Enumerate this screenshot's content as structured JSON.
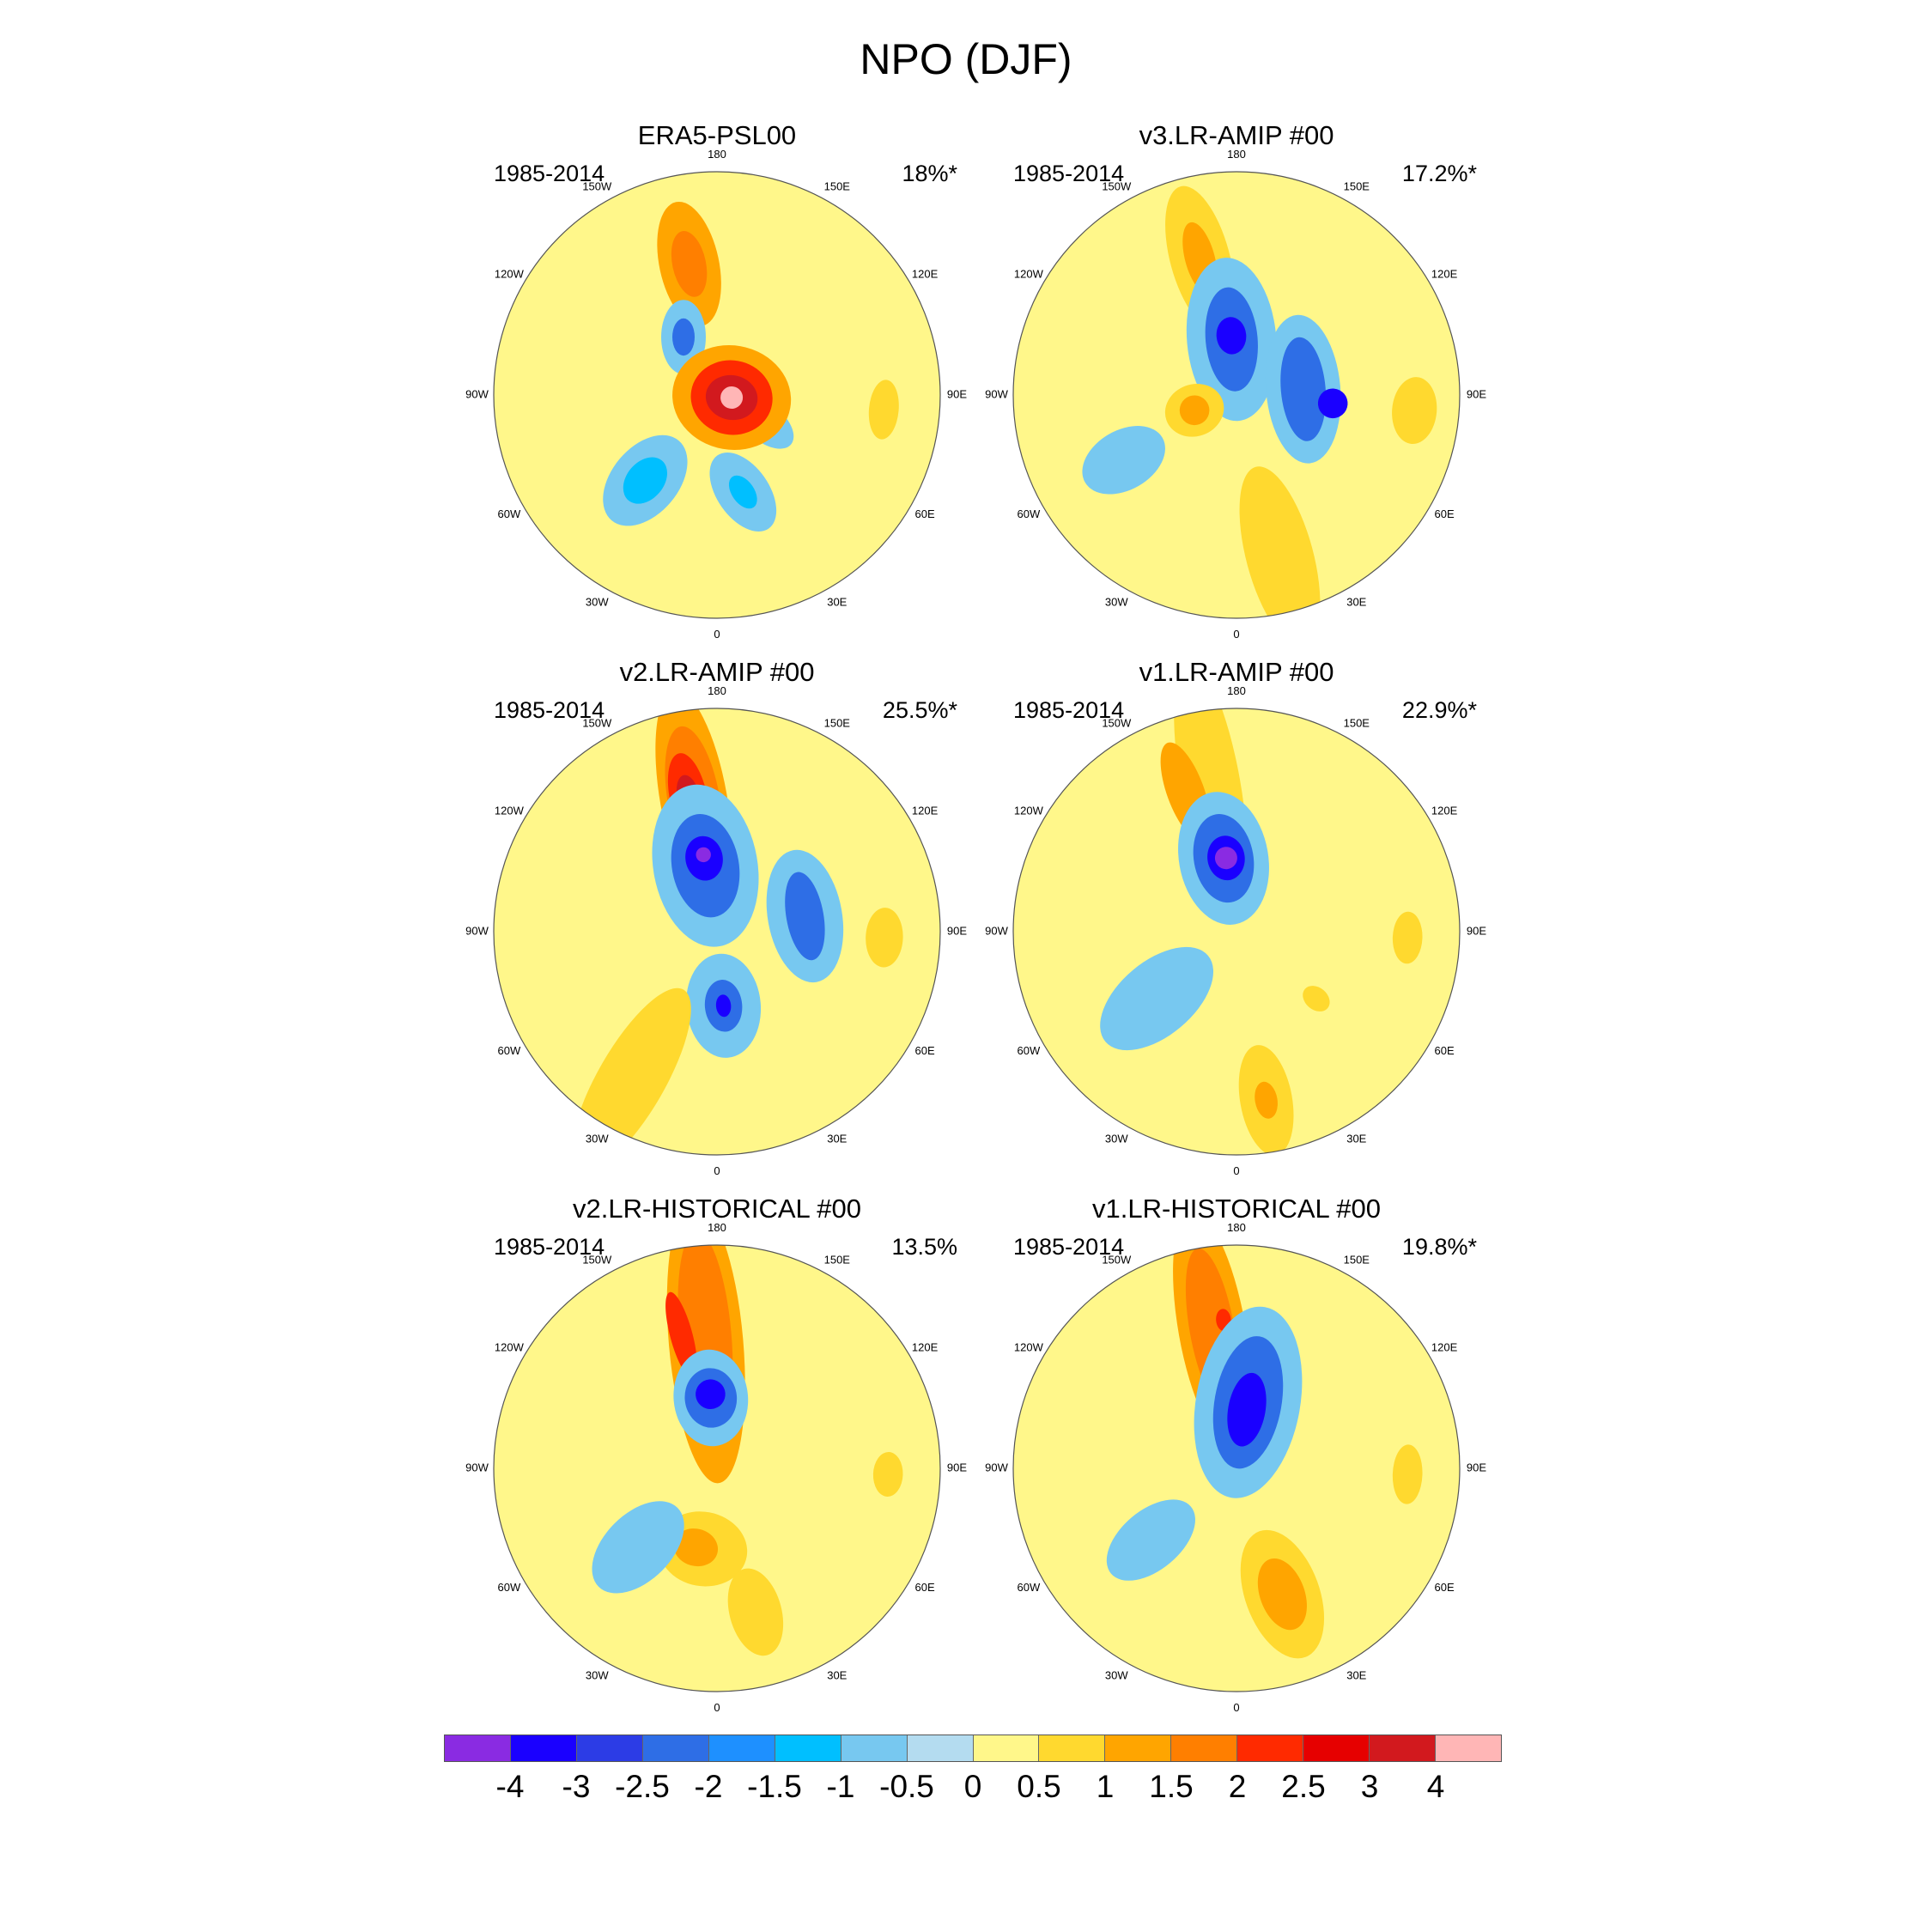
{
  "figure": {
    "title": "NPO (DJF)"
  },
  "longitude_labels": [
    "180",
    "150E",
    "120E",
    "90E",
    "60E",
    "30E",
    "0",
    "30W",
    "60W",
    "90W",
    "120W",
    "150W"
  ],
  "panels": [
    {
      "title": "ERA5-PSL00",
      "period": "1985-2014",
      "variance": "18%*",
      "features": [
        {
          "fill": "#FFA500",
          "lon": -168,
          "colat": 36,
          "rx": 17,
          "ry": 8,
          "rot": 0
        },
        {
          "fill": "#FF7F00",
          "lon": -168,
          "colat": 36,
          "rx": 9,
          "ry": 4.5,
          "rot": 0
        },
        {
          "fill": "#77C8F0",
          "lon": -150,
          "colat": 18,
          "rx": 10,
          "ry": 6,
          "rot": 30
        },
        {
          "fill": "#2E6EE6",
          "lon": -150,
          "colat": 18,
          "rx": 5,
          "ry": 3,
          "rot": 30
        },
        {
          "fill": "#77C8F0",
          "lon": 60,
          "colat": 15,
          "rx": 9,
          "ry": 5,
          "rot": 10
        },
        {
          "fill": "#FFA500",
          "lon": 80,
          "colat": 4,
          "rx": 16,
          "ry": 14,
          "rot": 0
        },
        {
          "fill": "#FF2A00",
          "lon": 80,
          "colat": 4,
          "rx": 11,
          "ry": 10,
          "rot": 0
        },
        {
          "fill": "#D2191E",
          "lon": 80,
          "colat": 4,
          "rx": 7,
          "ry": 6,
          "rot": 0
        },
        {
          "fill": "#FFB6B6",
          "lon": 80,
          "colat": 4,
          "rx": 3,
          "ry": 3,
          "rot": 0
        },
        {
          "fill": "#77C8F0",
          "lon": -40,
          "colat": 30,
          "rx": 14,
          "ry": 9,
          "rot": 0
        },
        {
          "fill": "#00BFFF",
          "lon": -40,
          "colat": 30,
          "rx": 7,
          "ry": 5,
          "rot": 0
        },
        {
          "fill": "#77C8F0",
          "lon": 15,
          "colat": 27,
          "rx": 12,
          "ry": 7,
          "rot": -20
        },
        {
          "fill": "#00BFFF",
          "lon": 15,
          "colat": 27,
          "rx": 5,
          "ry": 3,
          "rot": -20
        },
        {
          "fill": "#FFD92F",
          "lon": 85,
          "colat": 45,
          "rx": 4,
          "ry": 8,
          "rot": 0
        }
      ]
    },
    {
      "title": "v3.LR-AMIP  #00",
      "period": "1985-2014",
      "variance": "17.2%*",
      "features": [
        {
          "fill": "#FFD92F",
          "lon": -165,
          "colat": 38,
          "rx": 20,
          "ry": 8,
          "rot": 0
        },
        {
          "fill": "#FFA500",
          "lon": -165,
          "colat": 38,
          "rx": 10,
          "ry": 4,
          "rot": 0
        },
        {
          "fill": "#77C8F0",
          "lon": -175,
          "colat": 15,
          "rx": 22,
          "ry": 12,
          "rot": 0
        },
        {
          "fill": "#2E6EE6",
          "lon": -175,
          "colat": 15,
          "rx": 14,
          "ry": 7,
          "rot": 0
        },
        {
          "fill": "#1A00FF",
          "lon": -175,
          "colat": 16,
          "rx": 5,
          "ry": 4,
          "rot": 0
        },
        {
          "fill": "#77C8F0",
          "lon": 95,
          "colat": 18,
          "rx": 10,
          "ry": 20,
          "rot": 0
        },
        {
          "fill": "#2E6EE6",
          "lon": 95,
          "colat": 18,
          "rx": 6,
          "ry": 14,
          "rot": 0
        },
        {
          "fill": "#1A00FF",
          "lon": 85,
          "colat": 26,
          "rx": 4,
          "ry": 4,
          "rot": 0
        },
        {
          "fill": "#FFD92F",
          "lon": -70,
          "colat": 12,
          "rx": 8,
          "ry": 7,
          "rot": 0
        },
        {
          "fill": "#FFA500",
          "lon": -70,
          "colat": 12,
          "rx": 4,
          "ry": 4,
          "rot": 0
        },
        {
          "fill": "#FFD92F",
          "lon": 15,
          "colat": 45,
          "rx": 25,
          "ry": 9,
          "rot": 0
        },
        {
          "fill": "#FFD92F",
          "lon": 85,
          "colat": 48,
          "rx": 6,
          "ry": 9,
          "rot": 0
        },
        {
          "fill": "#77C8F0",
          "lon": -60,
          "colat": 35,
          "rx": 12,
          "ry": 8,
          "rot": 0
        }
      ]
    },
    {
      "title": "v2.LR-AMIP  #00",
      "period": "1985-2014",
      "variance": "25.5%*",
      "features": [
        {
          "fill": "#FFA500",
          "lon": -170,
          "colat": 36,
          "rx": 30,
          "ry": 9,
          "rot": 0
        },
        {
          "fill": "#FF7F00",
          "lon": -170,
          "colat": 36,
          "rx": 20,
          "ry": 7,
          "rot": 0
        },
        {
          "fill": "#FF2A00",
          "lon": -168,
          "colat": 37,
          "rx": 12,
          "ry": 5,
          "rot": 0
        },
        {
          "fill": "#D2191E",
          "lon": -168,
          "colat": 37,
          "rx": 6,
          "ry": 3,
          "rot": 0
        },
        {
          "fill": "#77C8F0",
          "lon": -170,
          "colat": 18,
          "rx": 22,
          "ry": 14,
          "rot": 0
        },
        {
          "fill": "#2E6EE6",
          "lon": -170,
          "colat": 18,
          "rx": 14,
          "ry": 9,
          "rot": 0
        },
        {
          "fill": "#1A00FF",
          "lon": -170,
          "colat": 20,
          "rx": 6,
          "ry": 5,
          "rot": 0
        },
        {
          "fill": "#8A2BE2",
          "lon": -170,
          "colat": 21,
          "rx": 2,
          "ry": 2,
          "rot": 0
        },
        {
          "fill": "#77C8F0",
          "lon": 100,
          "colat": 24,
          "rx": 10,
          "ry": 18,
          "rot": 0
        },
        {
          "fill": "#2E6EE6",
          "lon": 100,
          "colat": 24,
          "rx": 5,
          "ry": 12,
          "rot": 0
        },
        {
          "fill": "#77C8F0",
          "lon": 5,
          "colat": 20,
          "rx": 14,
          "ry": 10,
          "rot": 0
        },
        {
          "fill": "#2E6EE6",
          "lon": 5,
          "colat": 20,
          "rx": 7,
          "ry": 5,
          "rot": 0
        },
        {
          "fill": "#1A00FF",
          "lon": 5,
          "colat": 20,
          "rx": 3,
          "ry": 2,
          "rot": 0
        },
        {
          "fill": "#FFD92F",
          "lon": -30,
          "colat": 46,
          "rx": 28,
          "ry": 9,
          "rot": 0
        },
        {
          "fill": "#FFD92F",
          "lon": 88,
          "colat": 45,
          "rx": 5,
          "ry": 8,
          "rot": 0
        }
      ]
    },
    {
      "title": "v1.LR-AMIP  #00",
      "period": "1985-2014",
      "variance": "22.9%*",
      "features": [
        {
          "fill": "#FFD92F",
          "lon": -170,
          "colat": 40,
          "rx": 34,
          "ry": 8,
          "rot": 0
        },
        {
          "fill": "#FFA500",
          "lon": -160,
          "colat": 40,
          "rx": 14,
          "ry": 5,
          "rot": 0
        },
        {
          "fill": "#77C8F0",
          "lon": -170,
          "colat": 20,
          "rx": 18,
          "ry": 12,
          "rot": 0
        },
        {
          "fill": "#2E6EE6",
          "lon": -170,
          "colat": 20,
          "rx": 12,
          "ry": 8,
          "rot": 0
        },
        {
          "fill": "#1A00FF",
          "lon": -172,
          "colat": 20,
          "rx": 6,
          "ry": 5,
          "rot": 0
        },
        {
          "fill": "#8A2BE2",
          "lon": -172,
          "colat": 20,
          "rx": 3,
          "ry": 3,
          "rot": 0
        },
        {
          "fill": "#77C8F0",
          "lon": -50,
          "colat": 28,
          "rx": 18,
          "ry": 10,
          "rot": 0
        },
        {
          "fill": "#FFD92F",
          "lon": 10,
          "colat": 46,
          "rx": 15,
          "ry": 7,
          "rot": 0
        },
        {
          "fill": "#FFA500",
          "lon": 10,
          "colat": 46,
          "rx": 5,
          "ry": 3,
          "rot": 0
        },
        {
          "fill": "#FFD92F",
          "lon": 88,
          "colat": 46,
          "rx": 4,
          "ry": 7,
          "rot": 0
        },
        {
          "fill": "#FFD92F",
          "lon": 50,
          "colat": 28,
          "rx": 4,
          "ry": 3,
          "rot": 0
        }
      ]
    },
    {
      "title": "v2.LR-HISTORICAL  #00",
      "period": "1985-2014",
      "variance": "13.5%",
      "features": [
        {
          "fill": "#FFA500",
          "lon": -175,
          "colat": 34,
          "rx": 38,
          "ry": 10,
          "rot": 0
        },
        {
          "fill": "#FF7F00",
          "lon": -175,
          "colat": 36,
          "rx": 28,
          "ry": 7,
          "rot": 0
        },
        {
          "fill": "#FF2A00",
          "lon": -165,
          "colat": 37,
          "rx": 12,
          "ry": 3,
          "rot": 0
        },
        {
          "fill": "#77C8F0",
          "lon": -175,
          "colat": 19,
          "rx": 13,
          "ry": 10,
          "rot": 0
        },
        {
          "fill": "#2E6EE6",
          "lon": -175,
          "colat": 19,
          "rx": 8,
          "ry": 7,
          "rot": 0
        },
        {
          "fill": "#1A00FF",
          "lon": -175,
          "colat": 20,
          "rx": 4,
          "ry": 4,
          "rot": 0
        },
        {
          "fill": "#FFD92F",
          "lon": -10,
          "colat": 22,
          "rx": 10,
          "ry": 12,
          "rot": 0
        },
        {
          "fill": "#FFA500",
          "lon": -15,
          "colat": 22,
          "rx": 5,
          "ry": 6,
          "rot": 0
        },
        {
          "fill": "#77C8F0",
          "lon": -45,
          "colat": 30,
          "rx": 15,
          "ry": 9,
          "rot": 0
        },
        {
          "fill": "#FFD92F",
          "lon": 15,
          "colat": 40,
          "rx": 12,
          "ry": 7,
          "rot": 0
        },
        {
          "fill": "#FFD92F",
          "lon": 88,
          "colat": 46,
          "rx": 4,
          "ry": 6,
          "rot": 0
        }
      ]
    },
    {
      "title": "v1.LR-HISTORICAL  #00",
      "period": "1985-2014",
      "variance": "19.8%*",
      "features": [
        {
          "fill": "#FFA500",
          "lon": -170,
          "colat": 38,
          "rx": 32,
          "ry": 9,
          "rot": 0
        },
        {
          "fill": "#FF7F00",
          "lon": -170,
          "colat": 38,
          "rx": 22,
          "ry": 6,
          "rot": 0
        },
        {
          "fill": "#FF2A00",
          "lon": -175,
          "colat": 40,
          "rx": 3,
          "ry": 2,
          "rot": 0
        },
        {
          "fill": "#77C8F0",
          "lon": 170,
          "colat": 18,
          "rx": 26,
          "ry": 14,
          "rot": 0
        },
        {
          "fill": "#2E6EE6",
          "lon": 170,
          "colat": 18,
          "rx": 18,
          "ry": 9,
          "rot": 0
        },
        {
          "fill": "#1A00FF",
          "lon": 170,
          "colat": 16,
          "rx": 10,
          "ry": 5,
          "rot": 0
        },
        {
          "fill": "#FFD92F",
          "lon": 20,
          "colat": 36,
          "rx": 18,
          "ry": 10,
          "rot": 0
        },
        {
          "fill": "#FFA500",
          "lon": 20,
          "colat": 36,
          "rx": 10,
          "ry": 6,
          "rot": 0
        },
        {
          "fill": "#77C8F0",
          "lon": -50,
          "colat": 30,
          "rx": 14,
          "ry": 8,
          "rot": 0
        },
        {
          "fill": "#FFD92F",
          "lon": 88,
          "colat": 46,
          "rx": 4,
          "ry": 8,
          "rot": 0
        }
      ]
    }
  ],
  "colorbar": {
    "colors": [
      "#8A2BE2",
      "#1A00FF",
      "#2C3CE6",
      "#2E6EE6",
      "#1E90FF",
      "#00BFFF",
      "#77C8F0",
      "#B4DCF0",
      "#FFF78A",
      "#FFD92F",
      "#FFA500",
      "#FF7F00",
      "#FF2A00",
      "#E60000",
      "#D2191E",
      "#FFB6B6"
    ],
    "labels": [
      "-4",
      "-3",
      "-2.5",
      "-2",
      "-1.5",
      "-1",
      "-0.5",
      "0",
      "0.5",
      "1",
      "1.5",
      "2",
      "2.5",
      "3",
      "4"
    ]
  }
}
